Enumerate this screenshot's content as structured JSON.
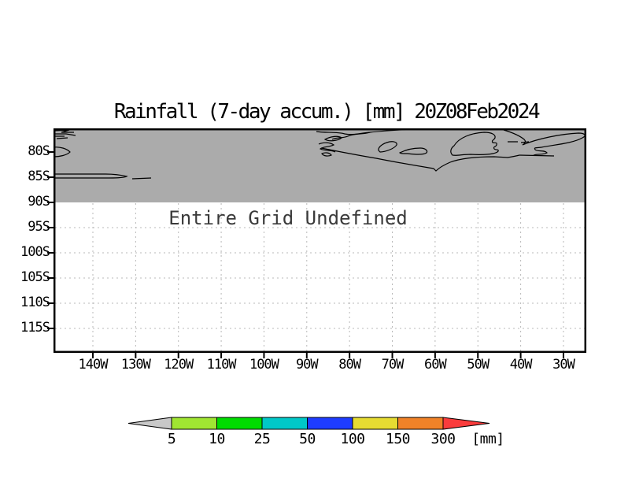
{
  "title": "Rainfall (7-day accum.) [mm] 20Z08Feb2024",
  "map": {
    "message": "Entire Grid Undefined",
    "lat_labels": [
      "80S",
      "85S",
      "90S",
      "95S",
      "100S",
      "105S",
      "110S",
      "115S"
    ],
    "lon_labels": [
      "140W",
      "130W",
      "120W",
      "110W",
      "100W",
      "90W",
      "80W",
      "70W",
      "60W",
      "50W",
      "40W",
      "30W"
    ],
    "land_color": "#ababab",
    "coastline_color": "#000000",
    "grid_color": "#b8b8b8",
    "frame_color": "#000000"
  },
  "colorbar": {
    "labels": [
      "5",
      "10",
      "25",
      "50",
      "100",
      "150",
      "300"
    ],
    "unit_label": "[mm]",
    "below_color": "#c8c8c8",
    "segment_colors": [
      "#a0e632",
      "#00dc00",
      "#00c8c8",
      "#1e3cff",
      "#e6dc32",
      "#f08228"
    ],
    "above_color": "#fa3c3c"
  },
  "chart_data": {
    "type": "heatmap",
    "title": "Rainfall (7-day accum.) [mm] 20Z08Feb2024",
    "variable": "Rainfall (7-day accum.)",
    "unit": "mm",
    "timestamp": "20Z08Feb2024",
    "x_ticks": [
      "140W",
      "130W",
      "120W",
      "110W",
      "100W",
      "90W",
      "80W",
      "70W",
      "60W",
      "50W",
      "40W",
      "30W"
    ],
    "y_ticks": [
      "80S",
      "85S",
      "90S",
      "95S",
      "100S",
      "105S",
      "110S",
      "115S"
    ],
    "values": null,
    "status": "Entire Grid Undefined",
    "annotation": "Entire Grid Undefined",
    "shaded_region": "gray band with black coastline contours above the 90S gridline",
    "colorbar_levels": [
      5,
      10,
      25,
      50,
      100,
      150,
      300
    ],
    "colorbar_unit": "[mm]",
    "colorbar_colors": [
      "#c8c8c8",
      "#a0e632",
      "#00dc00",
      "#00c8c8",
      "#1e3cff",
      "#e6dc32",
      "#f08228",
      "#fa3c3c"
    ],
    "grid": true,
    "legend_position": "bottom"
  }
}
